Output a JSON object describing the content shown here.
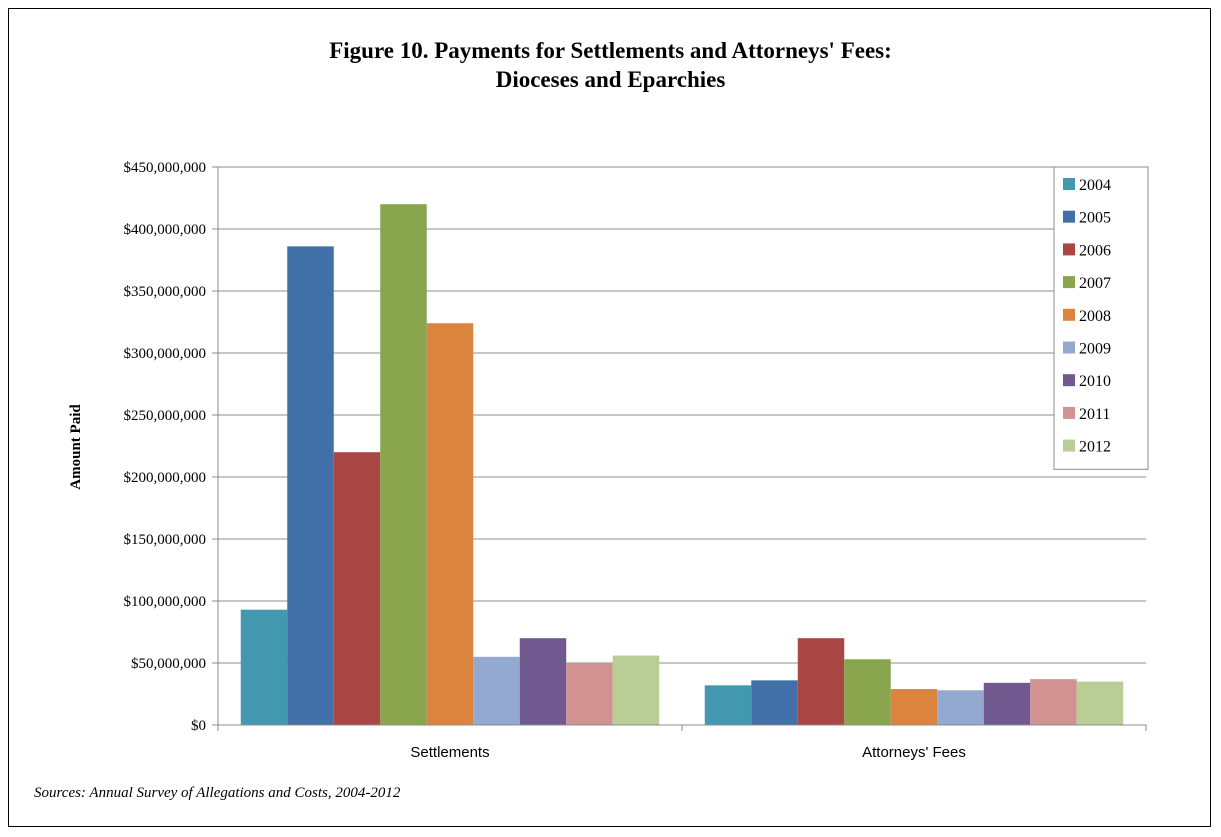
{
  "chart_data": {
    "type": "bar",
    "title_line1": "Figure 10.  Payments for Settlements and Attorneys' Fees:",
    "title_line2": "Dioceses and Eparchies",
    "ylabel": "Amount Paid",
    "xlabel": "",
    "categories": [
      "Settlements",
      "Attorneys' Fees"
    ],
    "ylim": [
      0,
      450000000
    ],
    "yticks": [
      0,
      50000000,
      100000000,
      150000000,
      200000000,
      250000000,
      300000000,
      350000000,
      400000000,
      450000000
    ],
    "ytick_labels": [
      "$0",
      "$50,000,000",
      "$100,000,000",
      "$150,000,000",
      "$200,000,000",
      "$250,000,000",
      "$300,000,000",
      "$350,000,000",
      "$400,000,000",
      "$450,000,000"
    ],
    "grid": true,
    "legend_position": "top-right",
    "series": [
      {
        "name": "2004",
        "color": "#4198AF",
        "values": [
          93000000,
          32000000
        ]
      },
      {
        "name": "2005",
        "color": "#4170A8",
        "values": [
          386000000,
          36000000
        ]
      },
      {
        "name": "2006",
        "color": "#AA4643",
        "values": [
          220000000,
          70000000
        ]
      },
      {
        "name": "2007",
        "color": "#89A54E",
        "values": [
          420000000,
          53000000
        ]
      },
      {
        "name": "2008",
        "color": "#DB843D",
        "values": [
          324000000,
          29000000
        ]
      },
      {
        "name": "2009",
        "color": "#93A9CF",
        "values": [
          55000000,
          28000000
        ]
      },
      {
        "name": "2010",
        "color": "#71588F",
        "values": [
          70000000,
          34000000
        ]
      },
      {
        "name": "2011",
        "color": "#D09392",
        "values": [
          50000000,
          37000000
        ]
      },
      {
        "name": "2012",
        "color": "#B9CD96",
        "values": [
          56000000,
          35000000
        ]
      }
    ]
  },
  "source": "Sources:  Annual Survey of Allegations and Costs, 2004-2012"
}
